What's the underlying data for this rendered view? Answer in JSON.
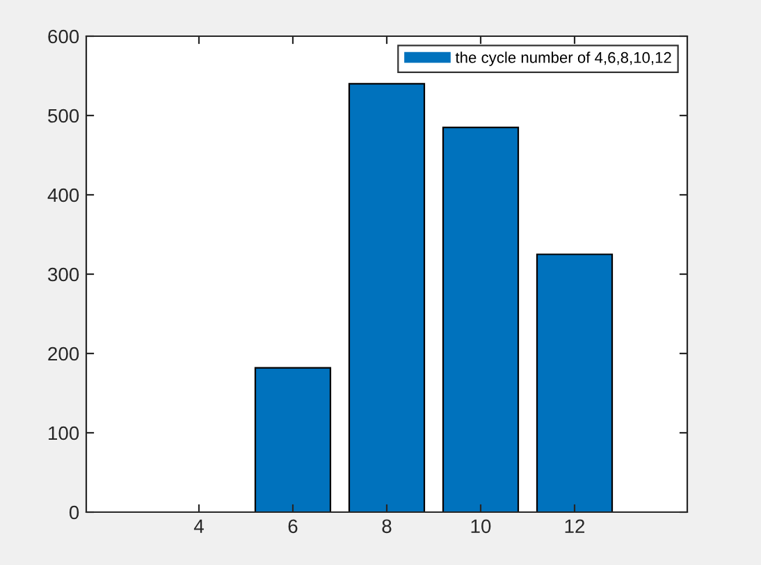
{
  "chart_data": {
    "type": "bar",
    "x": [
      4,
      6,
      8,
      10,
      12
    ],
    "series": [
      {
        "name": "the cycle number of 4,6,8,10,12",
        "color": "#0072bd",
        "values": [
          0,
          182,
          540,
          485,
          325
        ]
      }
    ],
    "xlim": [
      1.6,
      14.4
    ],
    "xticks": [
      4,
      6,
      8,
      10,
      12
    ],
    "ylim": [
      0,
      600
    ],
    "yticks": [
      0,
      100,
      200,
      300,
      400,
      500,
      600
    ],
    "grid": false,
    "legend": "top right"
  }
}
